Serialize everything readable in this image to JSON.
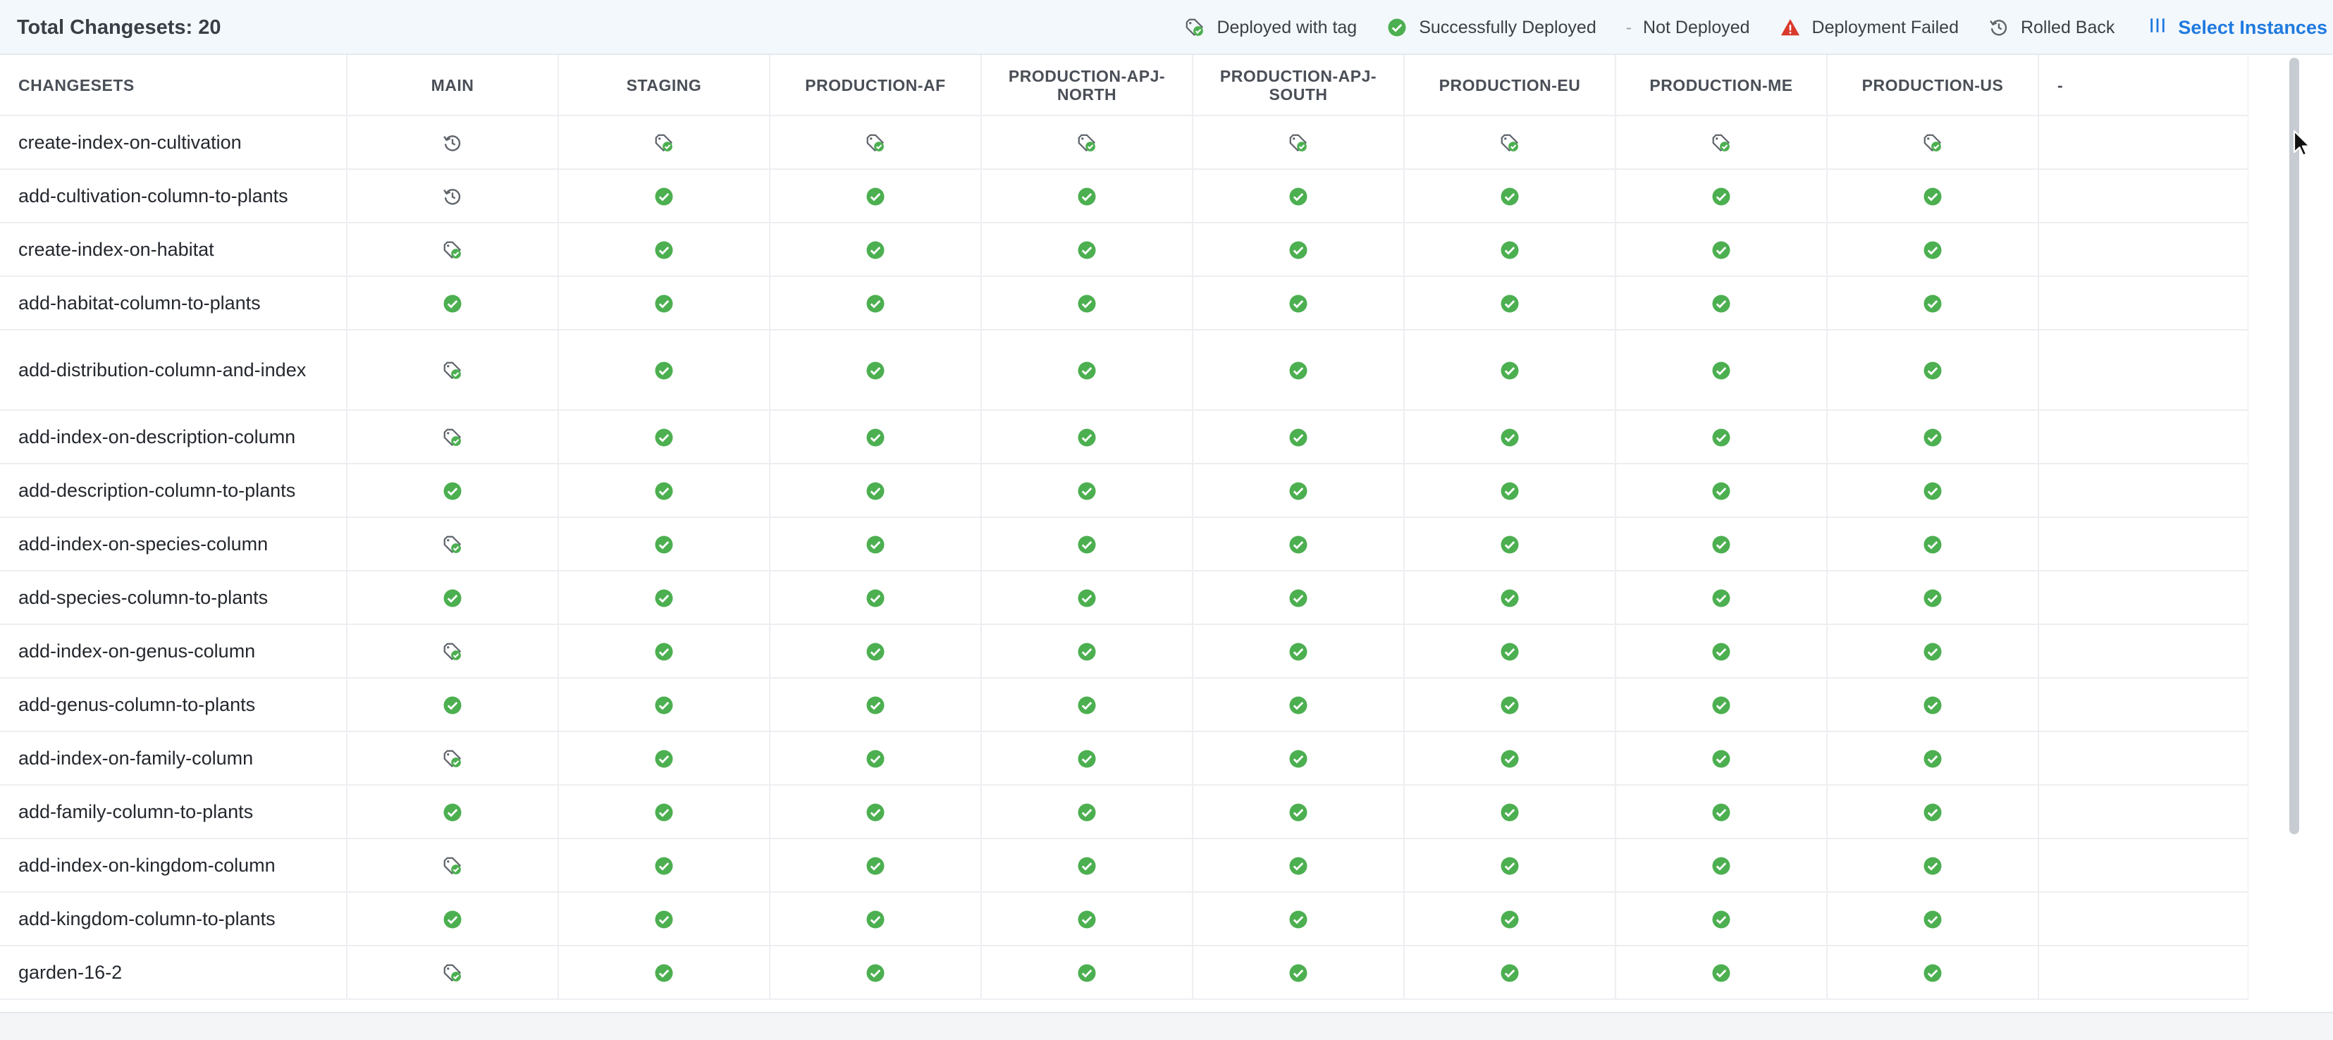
{
  "header": {
    "total_label": "Total Changesets: 20"
  },
  "legend": {
    "deployed_with_tag": "Deployed with tag",
    "successfully_deployed": "Successfully Deployed",
    "not_deployed_glyph": "-",
    "not_deployed": "Not Deployed",
    "deployment_failed": "Deployment Failed",
    "rolled_back": "Rolled Back",
    "select_instances": "Select Instances"
  },
  "colors": {
    "success": "#4caf50",
    "failed": "#d93a2b",
    "link": "#1f7ae0",
    "icon_gray": "#5f646b"
  },
  "table": {
    "columns": [
      "CHANGESETS",
      "MAIN",
      "STAGING",
      "PRODUCTION-AF",
      "PRODUCTION-APJ-NORTH",
      "PRODUCTION-APJ-SOUTH",
      "PRODUCTION-EU",
      "PRODUCTION-ME",
      "PRODUCTION-US",
      "-"
    ],
    "rows": [
      {
        "name": "create-index-on-cultivation",
        "cells": [
          "rolled_back",
          "tag",
          "tag",
          "tag",
          "tag",
          "tag",
          "tag",
          "tag",
          ""
        ]
      },
      {
        "name": "add-cultivation-column-to-plants",
        "cells": [
          "rolled_back",
          "success",
          "success",
          "success",
          "success",
          "success",
          "success",
          "success",
          ""
        ]
      },
      {
        "name": "create-index-on-habitat",
        "cells": [
          "tag",
          "success",
          "success",
          "success",
          "success",
          "success",
          "success",
          "success",
          ""
        ]
      },
      {
        "name": "add-habitat-column-to-plants",
        "cells": [
          "success",
          "success",
          "success",
          "success",
          "success",
          "success",
          "success",
          "success",
          ""
        ]
      },
      {
        "name": "add-distribution-column-and-index",
        "cells": [
          "tag",
          "success",
          "success",
          "success",
          "success",
          "success",
          "success",
          "success",
          ""
        ]
      },
      {
        "name": "add-index-on-description-column",
        "cells": [
          "tag",
          "success",
          "success",
          "success",
          "success",
          "success",
          "success",
          "success",
          ""
        ]
      },
      {
        "name": "add-description-column-to-plants",
        "cells": [
          "success",
          "success",
          "success",
          "success",
          "success",
          "success",
          "success",
          "success",
          ""
        ]
      },
      {
        "name": "add-index-on-species-column",
        "cells": [
          "tag",
          "success",
          "success",
          "success",
          "success",
          "success",
          "success",
          "success",
          ""
        ]
      },
      {
        "name": "add-species-column-to-plants",
        "cells": [
          "success",
          "success",
          "success",
          "success",
          "success",
          "success",
          "success",
          "success",
          ""
        ]
      },
      {
        "name": "add-index-on-genus-column",
        "cells": [
          "tag",
          "success",
          "success",
          "success",
          "success",
          "success",
          "success",
          "success",
          ""
        ]
      },
      {
        "name": "add-genus-column-to-plants",
        "cells": [
          "success",
          "success",
          "success",
          "success",
          "success",
          "success",
          "success",
          "success",
          ""
        ]
      },
      {
        "name": "add-index-on-family-column",
        "cells": [
          "tag",
          "success",
          "success",
          "success",
          "success",
          "success",
          "success",
          "success",
          ""
        ]
      },
      {
        "name": "add-family-column-to-plants",
        "cells": [
          "success",
          "success",
          "success",
          "success",
          "success",
          "success",
          "success",
          "success",
          ""
        ]
      },
      {
        "name": "add-index-on-kingdom-column",
        "cells": [
          "tag",
          "success",
          "success",
          "success",
          "success",
          "success",
          "success",
          "success",
          ""
        ]
      },
      {
        "name": "add-kingdom-column-to-plants",
        "cells": [
          "success",
          "success",
          "success",
          "success",
          "success",
          "success",
          "success",
          "success",
          ""
        ]
      },
      {
        "name": "garden-16-2",
        "cells": [
          "tag",
          "success",
          "success",
          "success",
          "success",
          "success",
          "success",
          "success",
          ""
        ]
      }
    ]
  }
}
